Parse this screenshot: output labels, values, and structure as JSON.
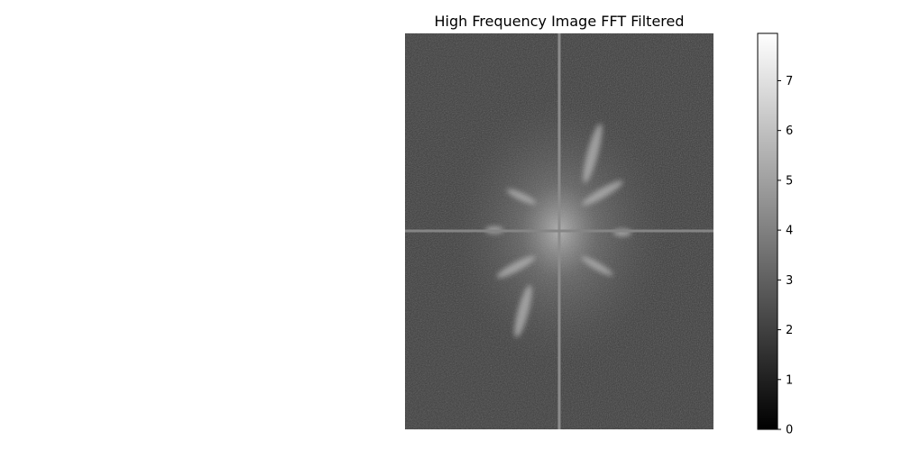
{
  "chart_data": {
    "type": "heatmap",
    "title": "High Frequency Image FFT Filtered",
    "axes_visible": false,
    "colormap": "gray",
    "value_range": [
      0,
      8
    ],
    "colorbar": {
      "ticks": [
        0,
        1,
        2,
        3,
        4,
        5,
        6,
        7
      ],
      "tick_labels": [
        "0",
        "1",
        "2",
        "3",
        "4",
        "5",
        "6",
        "7"
      ],
      "range": [
        0,
        7.95
      ]
    }
  }
}
